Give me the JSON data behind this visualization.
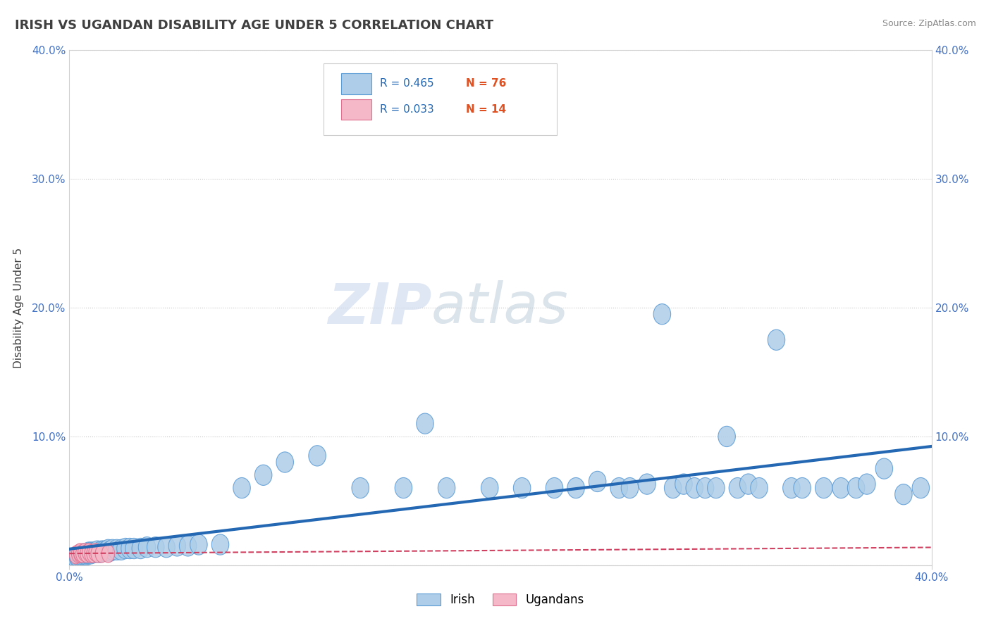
{
  "title": "IRISH VS UGANDAN DISABILITY AGE UNDER 5 CORRELATION CHART",
  "source_text": "Source: ZipAtlas.com",
  "ylabel": "Disability Age Under 5",
  "xlim": [
    0.0,
    0.4
  ],
  "ylim": [
    0.0,
    0.4
  ],
  "irish_R": 0.465,
  "irish_N": 76,
  "ugandan_R": 0.033,
  "ugandan_N": 14,
  "irish_color": "#aecde8",
  "irish_edge_color": "#5b9bd5",
  "ugandan_color": "#f4b8c8",
  "ugandan_edge_color": "#e07090",
  "irish_line_color": "#2468b4",
  "ugandan_line_color": "#d04060",
  "background_color": "#ffffff",
  "grid_color": "#c8c8c8",
  "title_color": "#404040",
  "watermark_ZIP_color": "#ccd8ee",
  "watermark_atlas_color": "#b8c8d8",
  "legend_R_color": "#2468b4",
  "legend_N_color": "#e05020",
  "irish_x": [
    0.001,
    0.002,
    0.003,
    0.004,
    0.005,
    0.006,
    0.007,
    0.008,
    0.009,
    0.01,
    0.011,
    0.012,
    0.013,
    0.014,
    0.015,
    0.016,
    0.017,
    0.018,
    0.019,
    0.02,
    0.022,
    0.024,
    0.026,
    0.028,
    0.03,
    0.033,
    0.036,
    0.04,
    0.045,
    0.05,
    0.055,
    0.06,
    0.065,
    0.07,
    0.08,
    0.09,
    0.1,
    0.11,
    0.12,
    0.13,
    0.14,
    0.15,
    0.16,
    0.17,
    0.18,
    0.19,
    0.2,
    0.21,
    0.22,
    0.23,
    0.24,
    0.25,
    0.26,
    0.265,
    0.27,
    0.275,
    0.28,
    0.285,
    0.29,
    0.295,
    0.3,
    0.305,
    0.31,
    0.315,
    0.32,
    0.325,
    0.33,
    0.34,
    0.35,
    0.36,
    0.365,
    0.37,
    0.375,
    0.38,
    0.39,
    0.395
  ],
  "irish_y": [
    0.005,
    0.006,
    0.006,
    0.007,
    0.007,
    0.007,
    0.007,
    0.007,
    0.008,
    0.008,
    0.008,
    0.009,
    0.009,
    0.009,
    0.009,
    0.009,
    0.01,
    0.01,
    0.01,
    0.01,
    0.01,
    0.011,
    0.011,
    0.011,
    0.011,
    0.012,
    0.012,
    0.012,
    0.012,
    0.013,
    0.013,
    0.013,
    0.07,
    0.07,
    0.07,
    0.07,
    0.08,
    0.085,
    0.06,
    0.055,
    0.06,
    0.075,
    0.065,
    0.07,
    0.06,
    0.075,
    0.08,
    0.065,
    0.07,
    0.065,
    0.065,
    0.07,
    0.065,
    0.065,
    0.07,
    0.06,
    0.06,
    0.065,
    0.195,
    0.07,
    0.07,
    0.06,
    0.06,
    0.065,
    0.065,
    0.065,
    0.06,
    0.065,
    0.07,
    0.06,
    0.06,
    0.06,
    0.063,
    0.075,
    0.055,
    0.07
  ],
  "ugandan_x": [
    0.003,
    0.004,
    0.005,
    0.006,
    0.007,
    0.008,
    0.009,
    0.01,
    0.011,
    0.012,
    0.013,
    0.014,
    0.015,
    0.018
  ],
  "ugandan_y": [
    0.009,
    0.009,
    0.01,
    0.01,
    0.01,
    0.009,
    0.009,
    0.01,
    0.01,
    0.009,
    0.009,
    0.009,
    0.009,
    0.009
  ]
}
